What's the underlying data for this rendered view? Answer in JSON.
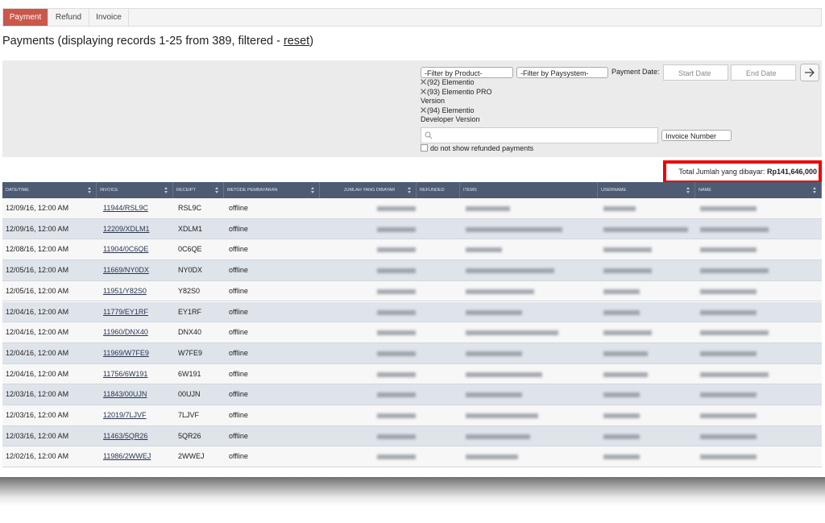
{
  "tabs": [
    "Payment",
    "Refund",
    "Invoice"
  ],
  "heading": {
    "text": "Payments (displaying records 1-25 from 389, filtered -",
    "link": "reset",
    "close": ")"
  },
  "filters": {
    "product": "-Filter by Product-",
    "paysystem": "-Filter by Paysystem-",
    "payment_date": "Payment Date:",
    "start_date": "Start Date",
    "end_date": "End Date",
    "selected": [
      "(92) Elementio",
      "(93) Elementio PRO Version",
      "(94) Elementio Developer Version"
    ],
    "search_type": "Invoice Number",
    "refund_checkbox": "do not show refunded payments"
  },
  "total": {
    "label": "Total Jumlah yang dibayar:",
    "value": "Rp141,646,000"
  },
  "table": {
    "columns": [
      "DATE/TIME",
      "INVOICE",
      "RECEIPT",
      "METODE PEMBAYARAN",
      "JUMLAH YANG DIBAYAR",
      "REFUNDED",
      "ITEMS",
      "USERNAME",
      "NAME"
    ],
    "rows": [
      [
        "12/09/16, 12:00 AM",
        "11944/RSL9C",
        "RSL9C",
        "offline"
      ],
      [
        "12/09/16, 12:00 AM",
        "12209/XDLM1",
        "XDLM1",
        "offline"
      ],
      [
        "12/08/16, 12:00 AM",
        "11904/0C6QE",
        "0C6QE",
        "offline"
      ],
      [
        "12/05/16, 12:00 AM",
        "11669/NY0DX",
        "NY0DX",
        "offline"
      ],
      [
        "12/05/16, 12:00 AM",
        "11951/Y82S0",
        "Y82S0",
        "offline"
      ],
      [
        "12/04/16, 12:00 AM",
        "11779/EY1RF",
        "EY1RF",
        "offline"
      ],
      [
        "12/04/16, 12:00 AM",
        "11960/DNX40",
        "DNX40",
        "offline"
      ],
      [
        "12/04/16, 12:00 AM",
        "11969/W7FE9",
        "W7FE9",
        "offline"
      ],
      [
        "12/04/16, 12:00 AM",
        "11756/6W191",
        "6W191",
        "offline"
      ],
      [
        "12/03/16, 12:00 AM",
        "11843/00UJN",
        "00UJN",
        "offline"
      ],
      [
        "12/03/16, 12:00 AM",
        "12019/7LJVF",
        "7LJVF",
        "offline"
      ],
      [
        "12/03/16, 12:00 AM",
        "11463/5QR26",
        "5QR26",
        "offline"
      ],
      [
        "12/02/16, 12:00 AM",
        "11986/2WWEJ",
        "2WWEJ",
        "offline"
      ]
    ]
  }
}
